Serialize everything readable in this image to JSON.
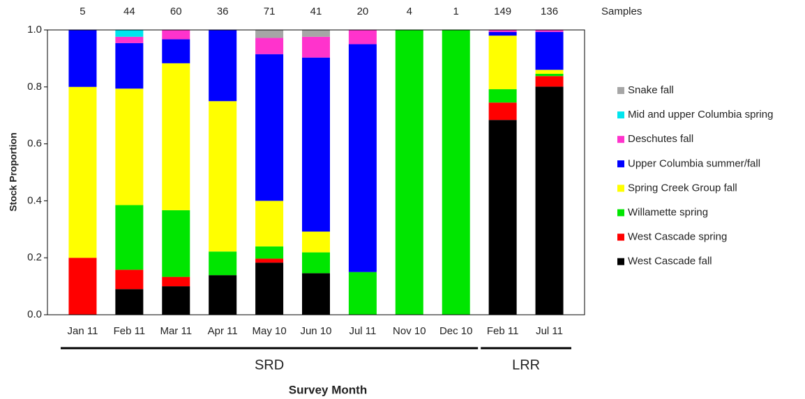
{
  "chart_data": {
    "type": "stacked-bar",
    "y_label": "Stock Proportion",
    "x_label": "Survey Month",
    "sample_label": "Samples",
    "categories": [
      "Jan 11",
      "Feb 11",
      "Mar 11",
      "Apr 11",
      "May 10",
      "Jun 10",
      "Jul 11",
      "Nov 10",
      "Dec 10",
      "Feb 11",
      "Jul 11"
    ],
    "category_groups": [
      "SRD",
      "SRD",
      "SRD",
      "SRD",
      "SRD",
      "SRD",
      "SRD",
      "SRD",
      "SRD",
      "LRR",
      "LRR"
    ],
    "sample_counts": [
      5,
      44,
      60,
      36,
      71,
      41,
      20,
      4,
      1,
      149,
      136
    ],
    "ylim": [
      0,
      1
    ],
    "yticks": [
      {
        "value": 0,
        "label": "0.0"
      },
      {
        "value": 0.2,
        "label": "0.2"
      },
      {
        "value": 0.4,
        "label": "0.4"
      },
      {
        "value": 0.6,
        "label": "0.6"
      },
      {
        "value": 0.8,
        "label": "0.8"
      },
      {
        "value": 1,
        "label": "1.0"
      }
    ],
    "legend": "right",
    "series": [
      {
        "name": "West Cascade fall",
        "color": "#000000",
        "values": [
          0,
          0.09,
          0.1,
          0.139,
          0.183,
          0.146,
          0,
          0,
          0,
          0.684,
          0.801
        ]
      },
      {
        "name": "West Cascade spring",
        "color": "#ff0000",
        "values": [
          0.2,
          0.068,
          0.033,
          0,
          0.014,
          0,
          0,
          0,
          0,
          0.061,
          0.037
        ]
      },
      {
        "name": "Willamette spring",
        "color": "#00e600",
        "values": [
          0,
          0.227,
          0.234,
          0.083,
          0.043,
          0.073,
          0.15,
          1,
          1,
          0.047,
          0.008
        ]
      },
      {
        "name": "Spring Creek Group fall",
        "color": "#ffff00",
        "values": [
          0.6,
          0.409,
          0.516,
          0.528,
          0.16,
          0.073,
          0,
          0,
          0,
          0.188,
          0.014
        ]
      },
      {
        "name": "Upper Columbia summer/fall",
        "color": "#0000ff",
        "values": [
          0.2,
          0.16,
          0.084,
          0.25,
          0.515,
          0.611,
          0.8,
          0,
          0,
          0.013,
          0.133
        ]
      },
      {
        "name": "Deschutes fall",
        "color": "#ff33cc",
        "values": [
          0,
          0.022,
          0.033,
          0,
          0.057,
          0.073,
          0.05,
          0,
          0,
          0.007,
          0.007
        ]
      },
      {
        "name": "Mid and upper Columbia spring",
        "color": "#00e5ee",
        "values": [
          0,
          0.023,
          0,
          0,
          0,
          0,
          0,
          0,
          0,
          0,
          0
        ]
      },
      {
        "name": "Snake fall",
        "color": "#a6a6a6",
        "values": [
          0,
          0,
          0,
          0,
          0.028,
          0.024,
          0,
          0,
          0,
          0,
          0
        ]
      }
    ]
  }
}
